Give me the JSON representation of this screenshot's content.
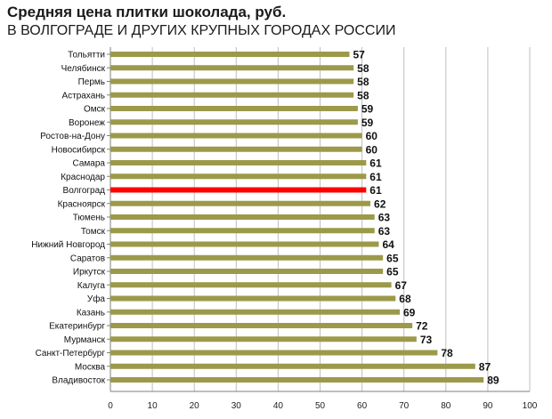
{
  "chart_data": {
    "type": "bar",
    "orientation": "horizontal",
    "title": "Средняя цена плитки шоколада, руб.",
    "subtitle": "В ВОЛГОГРАДЕ И ДРУГИХ КРУПНЫХ ГОРОДАХ РОССИИ",
    "categories": [
      "Тольятти",
      "Челябинск",
      "Пермь",
      "Астрахань",
      "Омск",
      "Воронеж",
      "Ростов-на-Дону",
      "Новосибирск",
      "Самара",
      "Краснодар",
      "Волгоград",
      "Красноярск",
      "Тюмень",
      "Томск",
      "Нижний Новгород",
      "Саратов",
      "Иркутск",
      "Калуга",
      "Уфа",
      "Казань",
      "Екатеринбург",
      "Мурманск",
      "Санкт-Петербург",
      "Москва",
      "Владивосток"
    ],
    "values": [
      57,
      58,
      58,
      58,
      59,
      59,
      60,
      60,
      61,
      61,
      61,
      62,
      63,
      63,
      64,
      65,
      65,
      67,
      68,
      69,
      72,
      73,
      78,
      87,
      89
    ],
    "highlight": "Волгоград",
    "xlim": [
      0,
      100
    ],
    "xticks": [
      0,
      10,
      20,
      30,
      40,
      50,
      60,
      70,
      80,
      90,
      100
    ],
    "grid": "vertical",
    "legend": "none",
    "colors": {
      "bar": "#9c9a4a",
      "highlight": "#ff0000",
      "grid": "#bfbfbf",
      "axis": "#7f7f7f"
    }
  }
}
